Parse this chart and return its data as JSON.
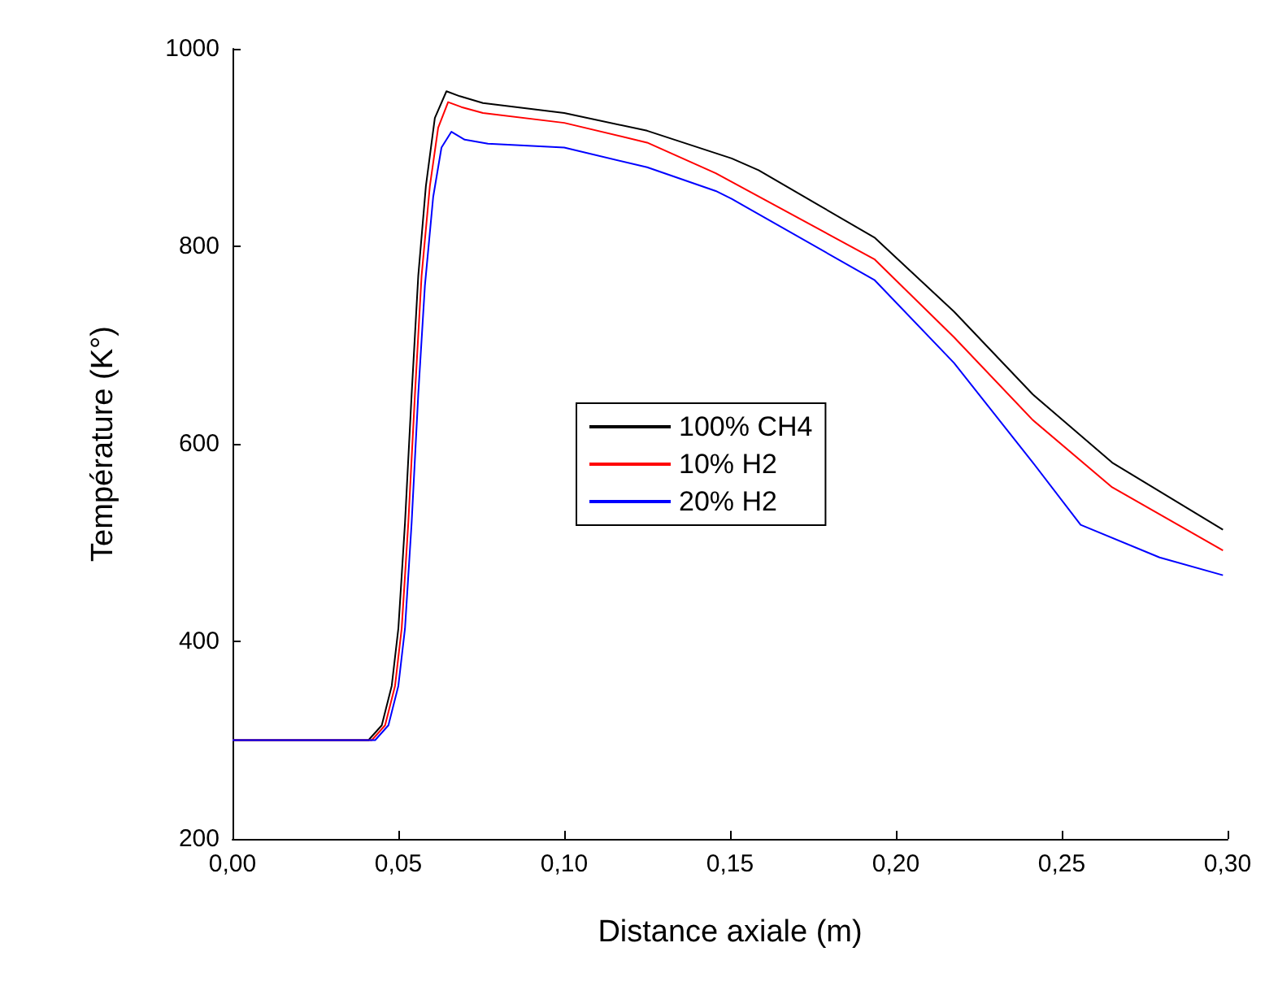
{
  "chart_data": {
    "type": "line",
    "xlabel": "Distance axiale (m)",
    "ylabel": "Température (K°)",
    "xlim": [
      0,
      0.3
    ],
    "ylim": [
      200,
      1000
    ],
    "xticks": [
      {
        "value": 0,
        "label": "0,00"
      },
      {
        "value": 0.05,
        "label": "0,05"
      },
      {
        "value": 0.1,
        "label": "0,10"
      },
      {
        "value": 0.15,
        "label": "0,15"
      },
      {
        "value": 0.2,
        "label": "0,20"
      },
      {
        "value": 0.25,
        "label": "0,25"
      },
      {
        "value": 0.3,
        "label": "0,30"
      }
    ],
    "yticks": [
      200,
      400,
      600,
      800,
      1000
    ],
    "grid": false,
    "legend": "center",
    "marker": "none",
    "line_style": "solid",
    "series": [
      {
        "name": "100% CH4",
        "color": "#000000",
        "x": [
          0,
          0.041,
          0.045,
          0.048,
          0.05,
          0.052,
          0.054,
          0.056,
          0.0583,
          0.061,
          0.0645,
          0.0685,
          0.0755,
          0.1,
          0.125,
          0.1505,
          0.1586,
          0.1935,
          0.2175,
          0.2413,
          0.2652,
          0.2986
        ],
        "values": [
          300,
          300,
          315,
          355,
          413,
          520,
          650,
          770,
          861,
          930,
          957,
          952,
          945,
          935,
          917,
          889,
          877,
          809,
          734,
          650,
          581,
          513
        ]
      },
      {
        "name": "10% H2",
        "color": "#ff0000",
        "x": [
          0,
          0.042,
          0.046,
          0.049,
          0.051,
          0.053,
          0.055,
          0.057,
          0.0595,
          0.062,
          0.065,
          0.069,
          0.0755,
          0.1,
          0.125,
          0.1457,
          0.1935,
          0.2175,
          0.2413,
          0.2652,
          0.2986
        ],
        "values": [
          300,
          300,
          315,
          355,
          413,
          520,
          650,
          770,
          861,
          920,
          946,
          941,
          935,
          925,
          905,
          874,
          787,
          708,
          624,
          556,
          492
        ]
      },
      {
        "name": "20% H2",
        "color": "#0000ff",
        "x": [
          0,
          0.043,
          0.047,
          0.05,
          0.052,
          0.054,
          0.056,
          0.058,
          0.0605,
          0.063,
          0.066,
          0.07,
          0.077,
          0.1,
          0.125,
          0.1457,
          0.1505,
          0.1935,
          0.2175,
          0.2413,
          0.2557,
          0.2795,
          0.2986
        ],
        "values": [
          300,
          300,
          315,
          355,
          413,
          520,
          650,
          760,
          850,
          900,
          916,
          908,
          904,
          900,
          880,
          856,
          848,
          766,
          682,
          581,
          518,
          485,
          467
        ]
      }
    ]
  }
}
